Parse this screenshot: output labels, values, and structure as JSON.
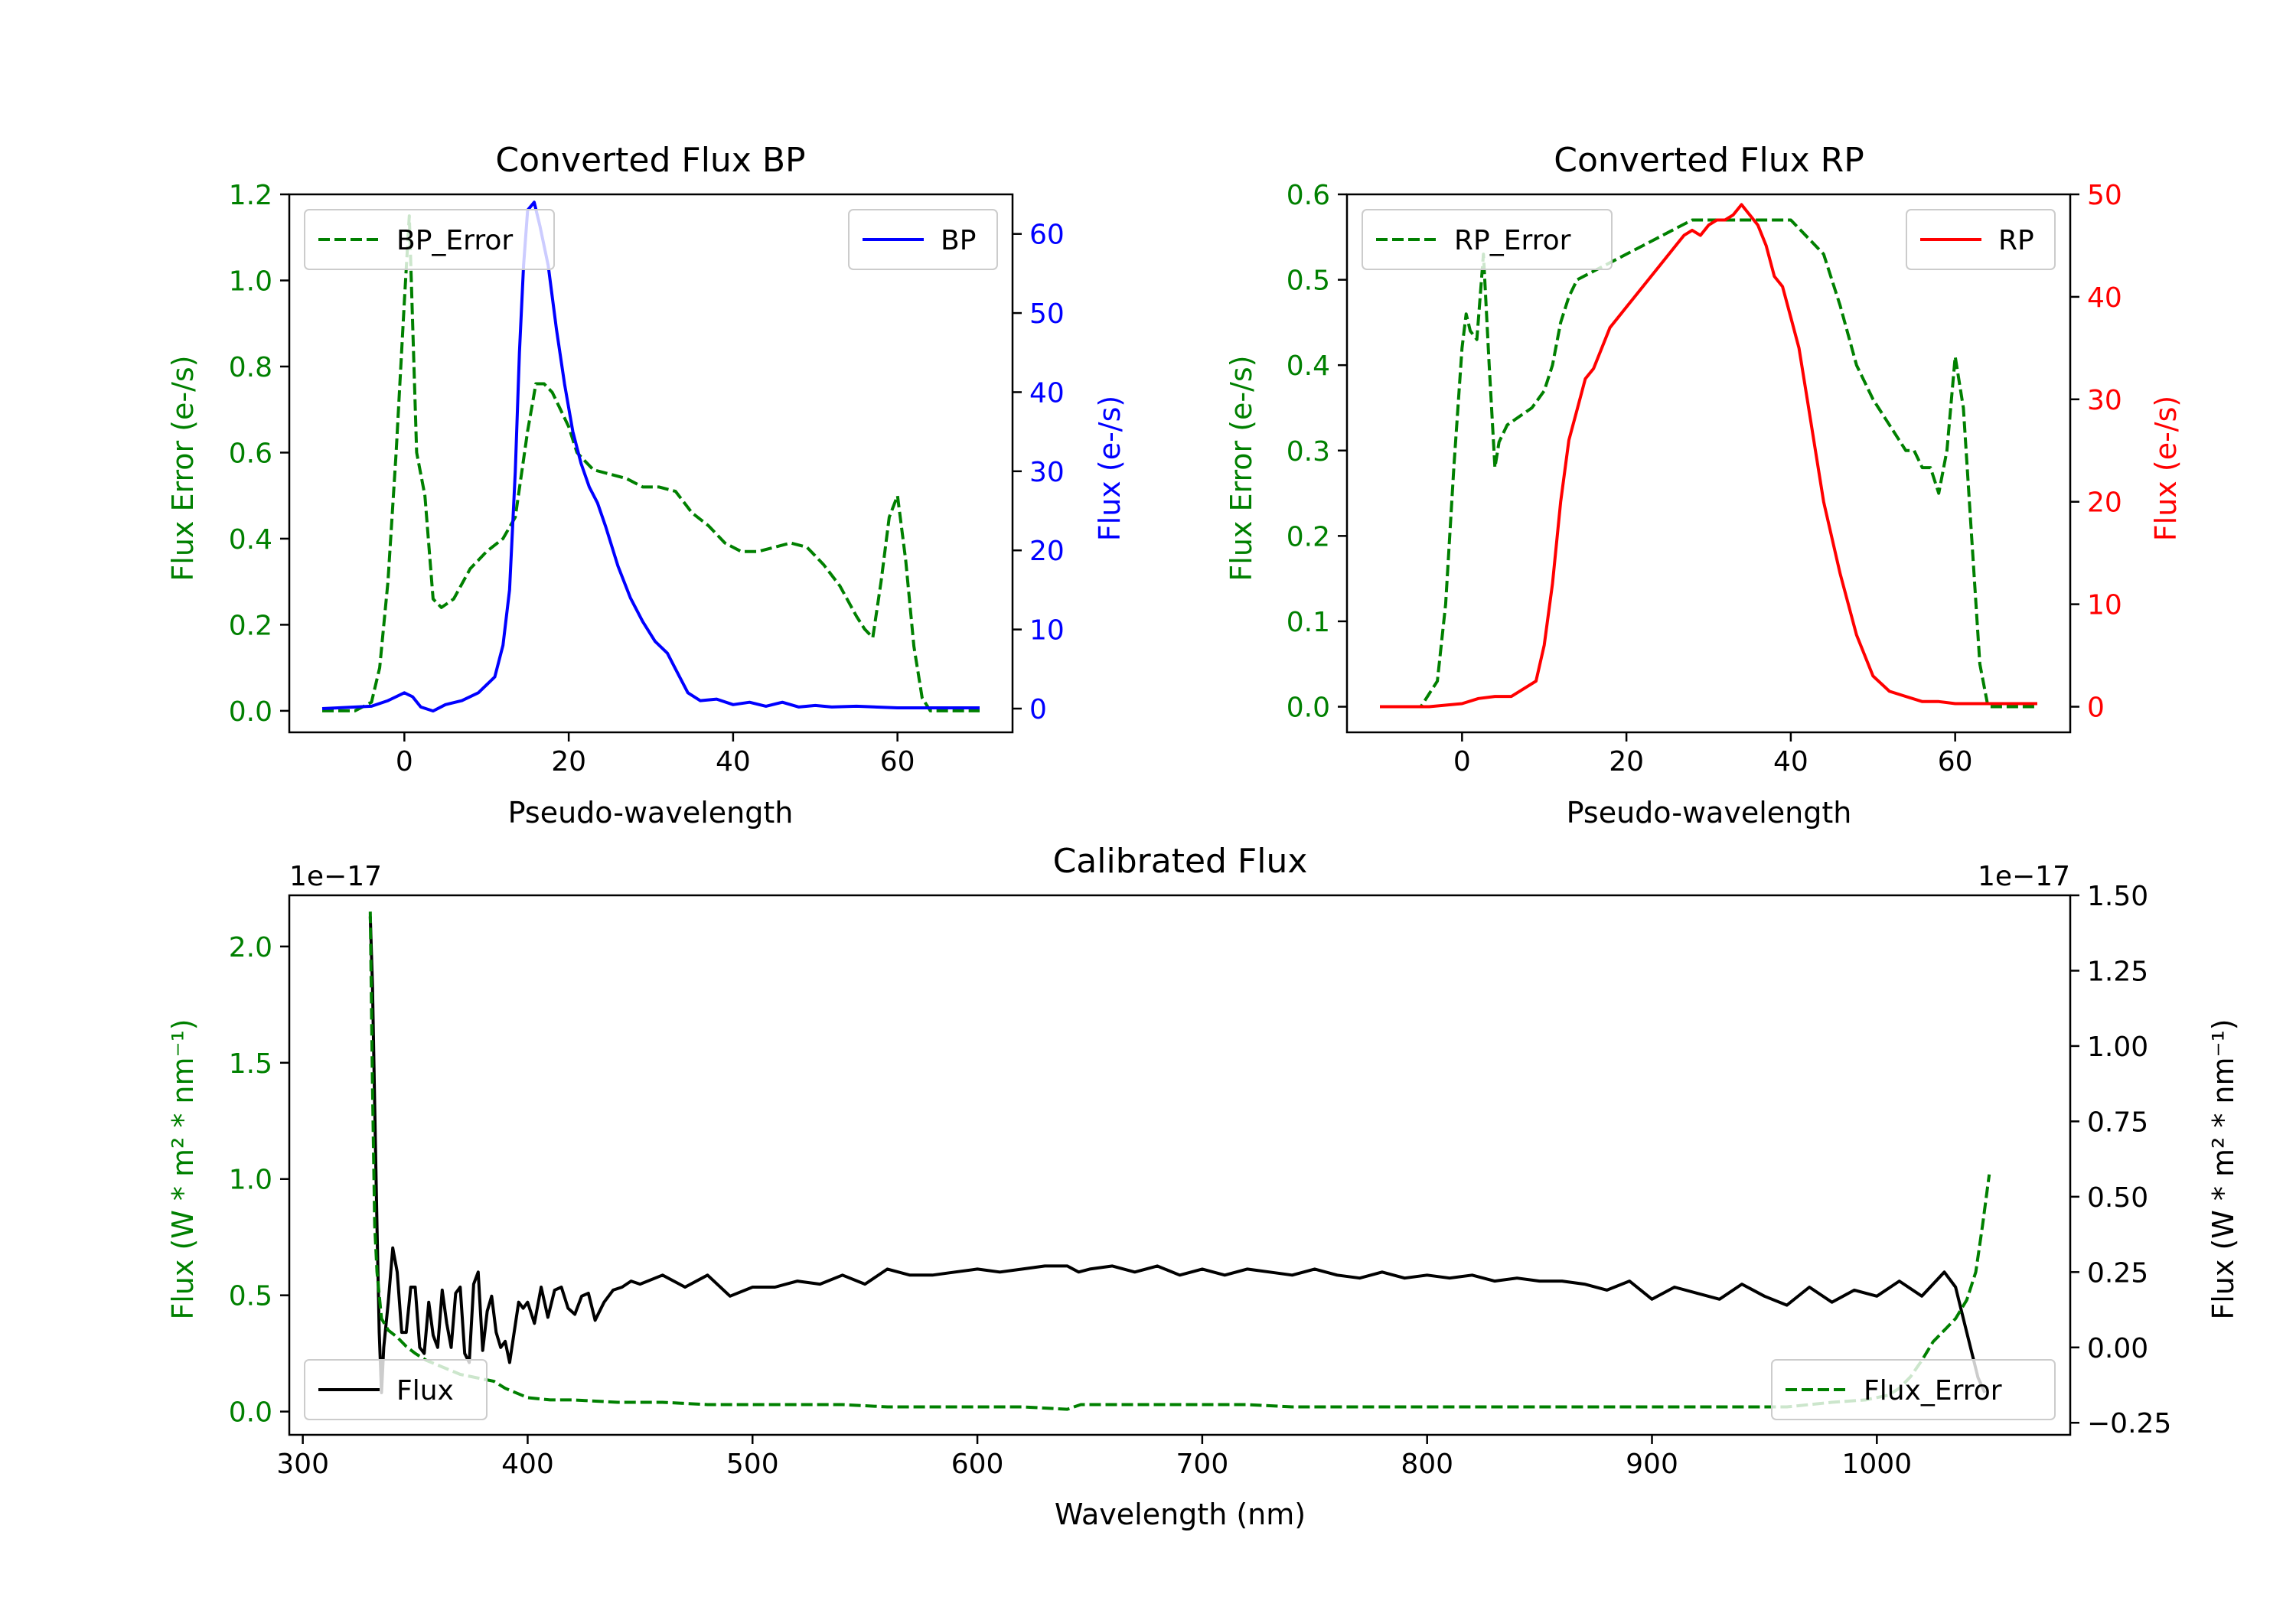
{
  "chart_data": [
    {
      "type": "line",
      "title": "Converted Flux BP",
      "xlabel": "Pseudo-wavelength",
      "xlim": [
        -14,
        74
      ],
      "xticks": [
        0,
        20,
        40,
        60
      ],
      "xtick_labels": [
        "0",
        "20",
        "40",
        "60"
      ],
      "left_axis": {
        "label": "Flux Error (e-/s)",
        "color": "#008000",
        "ylim": [
          -0.05,
          1.2
        ],
        "ticks": [
          0.0,
          0.2,
          0.4,
          0.6,
          0.8,
          1.0,
          1.2
        ],
        "tick_labels": [
          "0.0",
          "0.2",
          "0.4",
          "0.6",
          "0.8",
          "1.0",
          "1.2"
        ]
      },
      "right_axis": {
        "label": "Flux (e-/s)",
        "color": "#0000ff",
        "ylim": [
          -3,
          65
        ],
        "ticks": [
          0,
          10,
          20,
          30,
          40,
          50,
          60
        ],
        "tick_labels": [
          "0",
          "10",
          "20",
          "30",
          "40",
          "50",
          "60"
        ]
      },
      "series": [
        {
          "name": "BP_Error",
          "axis": "left",
          "color": "#008000",
          "style": "dashed",
          "x": [
            -10,
            -6,
            -4,
            -3,
            -2,
            -1,
            0,
            0.6,
            1.5,
            2.5,
            3.5,
            4.5,
            6,
            8,
            10,
            12,
            13.5,
            15,
            16,
            17,
            18,
            19,
            20,
            21,
            22,
            23,
            25,
            27,
            29,
            31,
            33,
            35,
            37,
            39,
            41,
            43,
            45,
            47,
            49,
            51,
            53,
            55,
            56,
            57,
            58,
            59,
            60,
            61,
            62,
            63,
            64,
            66,
            68,
            70
          ],
          "y": [
            0,
            0,
            0.02,
            0.1,
            0.3,
            0.6,
            0.95,
            1.15,
            0.6,
            0.5,
            0.26,
            0.24,
            0.26,
            0.33,
            0.37,
            0.4,
            0.45,
            0.65,
            0.76,
            0.76,
            0.74,
            0.7,
            0.66,
            0.6,
            0.58,
            0.56,
            0.55,
            0.54,
            0.52,
            0.52,
            0.51,
            0.46,
            0.43,
            0.39,
            0.37,
            0.37,
            0.38,
            0.39,
            0.38,
            0.34,
            0.29,
            0.22,
            0.19,
            0.17,
            0.3,
            0.45,
            0.5,
            0.35,
            0.15,
            0.03,
            0,
            0,
            0,
            0
          ]
        },
        {
          "name": "BP",
          "axis": "right",
          "color": "#0000ff",
          "style": "solid",
          "x": [
            -10,
            -4,
            -2,
            0,
            1,
            2,
            3.5,
            5,
            7,
            9,
            11,
            12,
            12.8,
            13.5,
            14,
            14.5,
            15,
            15.8,
            16.5,
            17.5,
            18.5,
            19.5,
            20.5,
            21.5,
            22.5,
            23.5,
            24.5,
            26,
            27.5,
            29,
            30.5,
            32,
            33,
            34.5,
            36,
            38,
            40,
            42,
            44,
            46,
            48,
            50,
            52,
            55,
            60,
            65,
            70
          ],
          "y": [
            0,
            0.3,
            1,
            2,
            1.5,
            0.2,
            -0.3,
            0.5,
            1,
            2,
            4,
            8,
            15,
            30,
            45,
            56,
            63,
            64,
            61,
            56,
            48,
            41,
            35,
            31,
            28,
            26,
            23,
            18,
            14,
            11,
            8.5,
            7,
            5,
            2,
            1,
            1.2,
            0.5,
            0.8,
            0.3,
            0.8,
            0.2,
            0.4,
            0.2,
            0.3,
            0.1,
            0.1,
            0.1
          ]
        }
      ],
      "legends": [
        {
          "entries": [
            "BP_Error"
          ],
          "loc": "upper left"
        },
        {
          "entries": [
            "BP"
          ],
          "loc": "upper right"
        }
      ]
    },
    {
      "type": "line",
      "title": "Converted Flux RP",
      "xlabel": "Pseudo-wavelength",
      "xlim": [
        -14,
        74
      ],
      "xticks": [
        0,
        20,
        40,
        60
      ],
      "xtick_labels": [
        "0",
        "20",
        "40",
        "60"
      ],
      "left_axis": {
        "label": "Flux Error (e-/s)",
        "color": "#008000",
        "ylim": [
          -0.03,
          0.6
        ],
        "ticks": [
          0.0,
          0.1,
          0.2,
          0.3,
          0.4,
          0.5,
          0.6
        ],
        "tick_labels": [
          "0.0",
          "0.1",
          "0.2",
          "0.3",
          "0.4",
          "0.5",
          "0.6"
        ]
      },
      "right_axis": {
        "label": "Flux (e-/s)",
        "color": "#ff0000",
        "ylim": [
          -2.5,
          50
        ],
        "ticks": [
          0,
          10,
          20,
          30,
          40,
          50
        ],
        "tick_labels": [
          "0",
          "10",
          "20",
          "30",
          "40",
          "50"
        ]
      },
      "series": [
        {
          "name": "RP_Error",
          "axis": "left",
          "color": "#008000",
          "style": "dashed",
          "x": [
            -10,
            -5,
            -3,
            -2,
            -1,
            0,
            0.5,
            1,
            1.8,
            2.6,
            3.3,
            4,
            4.5,
            5.5,
            7,
            8.5,
            10,
            11,
            12,
            13,
            14,
            16,
            18,
            20,
            22,
            24,
            26,
            28,
            30,
            32,
            34,
            36,
            38,
            40,
            42,
            44,
            46,
            48,
            50,
            52,
            54,
            55,
            56,
            57,
            58,
            59,
            60,
            61,
            62,
            63,
            64,
            66,
            68,
            70
          ],
          "y": [
            0,
            0,
            0.03,
            0.12,
            0.28,
            0.42,
            0.46,
            0.44,
            0.43,
            0.53,
            0.4,
            0.28,
            0.31,
            0.33,
            0.34,
            0.35,
            0.37,
            0.4,
            0.45,
            0.48,
            0.5,
            0.51,
            0.52,
            0.53,
            0.54,
            0.55,
            0.56,
            0.57,
            0.57,
            0.57,
            0.57,
            0.57,
            0.57,
            0.57,
            0.55,
            0.53,
            0.47,
            0.4,
            0.36,
            0.33,
            0.3,
            0.3,
            0.28,
            0.28,
            0.25,
            0.3,
            0.41,
            0.35,
            0.2,
            0.05,
            0,
            0,
            0,
            0
          ]
        },
        {
          "name": "RP",
          "axis": "right",
          "color": "#ff0000",
          "style": "solid",
          "x": [
            -10,
            -4,
            0,
            2,
            4,
            6,
            8,
            9,
            10,
            11,
            12,
            13,
            14,
            15,
            16,
            18,
            20,
            22,
            24,
            26,
            27,
            28,
            29,
            30,
            31,
            32,
            33,
            34,
            35,
            36,
            37,
            38,
            39,
            40,
            41,
            42,
            43,
            44,
            46,
            48,
            50,
            52,
            54,
            56,
            58,
            60,
            62,
            64,
            66,
            68,
            70
          ],
          "y": [
            0,
            0,
            0.3,
            0.8,
            1,
            1,
            2,
            2.5,
            6,
            12,
            20,
            26,
            29,
            32,
            33,
            37,
            39,
            41,
            43,
            45,
            46,
            46.5,
            46,
            47,
            47.5,
            47.5,
            48,
            49,
            48,
            47,
            45,
            42,
            41,
            38,
            35,
            30,
            25,
            20,
            13,
            7,
            3,
            1.5,
            1,
            0.5,
            0.5,
            0.3,
            0.3,
            0.3,
            0.3,
            0.3,
            0.3
          ]
        }
      ],
      "legends": [
        {
          "entries": [
            "RP_Error"
          ],
          "loc": "upper left"
        },
        {
          "entries": [
            "RP"
          ],
          "loc": "upper right"
        }
      ]
    },
    {
      "type": "line",
      "title": "Calibrated Flux",
      "xlabel": "Wavelength (nm)",
      "xlim": [
        294,
        1086
      ],
      "xticks": [
        300,
        400,
        500,
        600,
        700,
        800,
        900,
        1000
      ],
      "xtick_labels": [
        "300",
        "400",
        "500",
        "600",
        "700",
        "800",
        "900",
        "1000"
      ],
      "left_axis": {
        "label": "Flux (W * m² * nm⁻¹)",
        "color": "#008000",
        "offset_label": "1e−17",
        "ylim": [
          -0.1,
          2.22
        ],
        "ticks": [
          0.0,
          0.5,
          1.0,
          1.5,
          2.0
        ],
        "tick_labels": [
          "0.0",
          "0.5",
          "1.0",
          "1.5",
          "2.0"
        ]
      },
      "right_axis": {
        "label": "Flux (W * m² * nm⁻¹)",
        "color": "#000000",
        "offset_label": "1e−17",
        "ylim": [
          -0.29,
          1.5
        ],
        "ticks": [
          -0.25,
          0.0,
          0.25,
          0.5,
          0.75,
          1.0,
          1.25,
          1.5
        ],
        "tick_labels": [
          "−0.25",
          "0.00",
          "0.25",
          "0.50",
          "0.75",
          "1.00",
          "1.25",
          "1.50"
        ]
      },
      "series": [
        {
          "name": "Flux",
          "axis": "right",
          "color": "#000000",
          "style": "solid",
          "x": [
            330,
            331,
            332,
            333,
            334,
            335,
            336,
            338,
            340,
            342,
            344,
            346,
            348,
            350,
            352,
            354,
            356,
            358,
            360,
            362,
            364,
            366,
            368,
            370,
            372,
            374,
            376,
            378,
            380,
            382,
            384,
            386,
            388,
            390,
            392,
            394,
            396,
            398,
            400,
            403,
            406,
            409,
            412,
            415,
            418,
            421,
            424,
            427,
            430,
            434,
            438,
            442,
            446,
            450,
            460,
            470,
            480,
            490,
            500,
            510,
            520,
            530,
            540,
            550,
            560,
            570,
            580,
            590,
            600,
            610,
            620,
            630,
            640,
            645,
            650,
            660,
            670,
            680,
            690,
            700,
            710,
            720,
            730,
            740,
            750,
            760,
            770,
            780,
            790,
            800,
            810,
            820,
            830,
            840,
            850,
            860,
            870,
            880,
            890,
            900,
            910,
            920,
            930,
            940,
            950,
            960,
            970,
            980,
            990,
            1000,
            1010,
            1020,
            1030,
            1035,
            1040,
            1045,
            1048
          ],
          "y": [
            1.43,
            1.2,
            0.8,
            0.4,
            0.05,
            -0.15,
            0.0,
            0.15,
            0.33,
            0.25,
            0.05,
            0.05,
            0.2,
            0.2,
            0.0,
            -0.02,
            0.15,
            0.04,
            0.0,
            0.19,
            0.08,
            0.0,
            0.18,
            0.2,
            -0.02,
            -0.05,
            0.21,
            0.25,
            -0.01,
            0.12,
            0.17,
            0.05,
            0.0,
            0.02,
            -0.05,
            0.05,
            0.15,
            0.13,
            0.15,
            0.08,
            0.2,
            0.1,
            0.19,
            0.2,
            0.13,
            0.11,
            0.17,
            0.18,
            0.09,
            0.15,
            0.19,
            0.2,
            0.22,
            0.21,
            0.24,
            0.2,
            0.24,
            0.17,
            0.2,
            0.2,
            0.22,
            0.21,
            0.24,
            0.21,
            0.26,
            0.24,
            0.24,
            0.25,
            0.26,
            0.25,
            0.26,
            0.27,
            0.27,
            0.25,
            0.26,
            0.27,
            0.25,
            0.27,
            0.24,
            0.26,
            0.24,
            0.26,
            0.25,
            0.24,
            0.26,
            0.24,
            0.23,
            0.25,
            0.23,
            0.24,
            0.23,
            0.24,
            0.22,
            0.23,
            0.22,
            0.22,
            0.21,
            0.19,
            0.22,
            0.16,
            0.2,
            0.18,
            0.16,
            0.21,
            0.17,
            0.14,
            0.2,
            0.15,
            0.19,
            0.17,
            0.22,
            0.17,
            0.25,
            0.2,
            0.05,
            -0.1,
            -0.15
          ]
        },
        {
          "name": "Flux_Error",
          "axis": "left",
          "color": "#008000",
          "style": "dashed",
          "x": [
            330,
            331,
            332,
            333,
            335,
            338,
            342,
            346,
            350,
            355,
            360,
            365,
            370,
            375,
            380,
            385,
            390,
            395,
            400,
            410,
            420,
            440,
            460,
            480,
            500,
            520,
            540,
            560,
            580,
            600,
            620,
            640,
            643,
            646,
            650,
            660,
            680,
            700,
            720,
            740,
            760,
            780,
            800,
            820,
            840,
            860,
            880,
            900,
            920,
            940,
            960,
            980,
            995,
            1005,
            1010,
            1015,
            1020,
            1025,
            1030,
            1035,
            1040,
            1044,
            1047,
            1050
          ],
          "y": [
            2.15,
            1.4,
            0.8,
            0.6,
            0.4,
            0.35,
            0.32,
            0.28,
            0.25,
            0.22,
            0.2,
            0.18,
            0.16,
            0.15,
            0.14,
            0.13,
            0.1,
            0.08,
            0.06,
            0.05,
            0.05,
            0.04,
            0.04,
            0.03,
            0.03,
            0.03,
            0.03,
            0.02,
            0.02,
            0.02,
            0.02,
            0.01,
            0.02,
            0.03,
            0.03,
            0.03,
            0.03,
            0.03,
            0.03,
            0.02,
            0.02,
            0.02,
            0.02,
            0.02,
            0.02,
            0.02,
            0.02,
            0.02,
            0.02,
            0.02,
            0.02,
            0.04,
            0.05,
            0.07,
            0.1,
            0.15,
            0.22,
            0.3,
            0.35,
            0.4,
            0.48,
            0.6,
            0.8,
            1.02
          ]
        }
      ],
      "legends": [
        {
          "entries": [
            "Flux"
          ],
          "loc": "lower left"
        },
        {
          "entries": [
            "Flux_Error"
          ],
          "loc": "lower right"
        }
      ]
    }
  ]
}
